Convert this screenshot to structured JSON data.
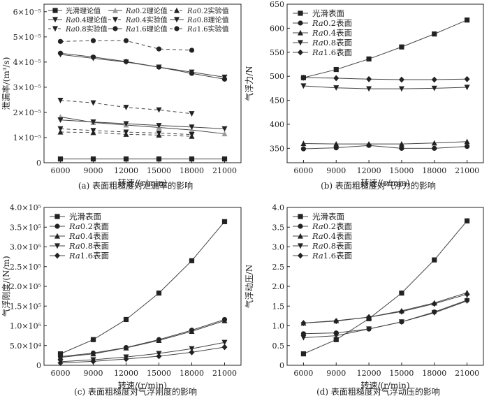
{
  "chart_data": [
    {
      "type": "line",
      "caption": "(a) 表面粗糙度对泄漏率的影响",
      "xlabel": "转速/(r/min)",
      "ylabel": "泄漏率/(m³/s)",
      "y_multiplier_label": "×10⁻⁵",
      "x": [
        6000,
        9000,
        12000,
        15000,
        18000,
        21000
      ],
      "xlim": [
        4500,
        22500
      ],
      "ylim": [
        0,
        6.3
      ],
      "yticks": [
        0,
        1,
        2,
        3,
        4,
        5,
        6
      ],
      "yticklabels": [
        "0",
        "1×10⁻⁵",
        "2×10⁻⁵",
        "3×10⁻⁵",
        "4×10⁻⁵",
        "5×10⁻⁵",
        "6×10⁻⁵"
      ],
      "legend_position": "top",
      "series": [
        {
          "name": "光滑理论值",
          "marker": "square",
          "dashed": false,
          "values": [
            0.15,
            0.15,
            0.15,
            0.15,
            0.15,
            0.15
          ]
        },
        {
          "name": "Ra0.2理论值",
          "marker": "triangle-up-gray",
          "dashed": false,
          "values": [
            1.82,
            1.6,
            1.5,
            1.4,
            1.3,
            1.15
          ]
        },
        {
          "name": "Ra0.2实验值",
          "marker": "triangle-up",
          "dashed": true,
          "values": [
            1.22,
            1.2,
            1.13,
            1.1,
            1.05,
            null
          ]
        },
        {
          "name": "Ra0.4理论值",
          "marker": "triangle-down",
          "dashed": false,
          "values": [
            1.7,
            1.62,
            1.55,
            1.48,
            1.42,
            1.35
          ]
        },
        {
          "name": "Ra0.4实验值",
          "marker": "triangle-down",
          "dashed": true,
          "values": [
            1.35,
            1.28,
            1.22,
            1.18,
            1.12,
            null
          ]
        },
        {
          "name": "Ra0.8理论值",
          "marker": "triangle-down",
          "dashed": false,
          "values": [
            4.3,
            4.15,
            4.0,
            3.8,
            3.6,
            3.4
          ]
        },
        {
          "name": "Ra0.8实验值",
          "marker": "triangle-down",
          "dashed": true,
          "values": [
            2.48,
            2.38,
            2.2,
            2.1,
            1.95,
            null
          ]
        },
        {
          "name": "Ra1.6理论值",
          "marker": "circle",
          "dashed": false,
          "values": [
            4.35,
            4.2,
            4.02,
            3.8,
            3.55,
            3.32
          ]
        },
        {
          "name": "Ra1.6实验值",
          "marker": "circle",
          "dashed": true,
          "values": [
            4.82,
            4.85,
            4.85,
            4.52,
            4.47,
            null
          ]
        }
      ]
    },
    {
      "type": "line",
      "caption": "(b) 表面粗糙度对气浮力的影响",
      "xlabel": "转速/(r/min)",
      "ylabel": "气浮力/N",
      "x": [
        6000,
        9000,
        12000,
        15000,
        18000,
        21000
      ],
      "xlim": [
        4500,
        22500
      ],
      "ylim": [
        320,
        650
      ],
      "yticks": [
        350,
        400,
        450,
        500,
        550,
        600,
        650
      ],
      "yticklabels": [
        "350",
        "400",
        "450",
        "500",
        "550",
        "600",
        "650"
      ],
      "legend_position": "top-left",
      "series": [
        {
          "name": "光滑表面",
          "marker": "square",
          "values": [
            497,
            514,
            536,
            561,
            588,
            617
          ]
        },
        {
          "name": "Ra0.2表面",
          "marker": "circle",
          "values": [
            349,
            351,
            356,
            350,
            350,
            354
          ]
        },
        {
          "name": "Ra0.4表面",
          "marker": "triangle-up",
          "values": [
            360,
            359,
            359,
            359,
            361,
            364
          ]
        },
        {
          "name": "Ra0.8表面",
          "marker": "triangle-down",
          "values": [
            480,
            476,
            474,
            474,
            475,
            477
          ]
        },
        {
          "name": "Ra1.6表面",
          "marker": "diamond",
          "values": [
            497,
            496,
            494,
            493,
            493,
            494
          ]
        }
      ]
    },
    {
      "type": "line",
      "caption": "(c) 表面粗糙度对气浮刚度的影响",
      "xlabel": "转速/(r/min)",
      "ylabel": "气浮刚度/(N/m)",
      "x": [
        6000,
        9000,
        12000,
        15000,
        18000,
        21000
      ],
      "xlim": [
        4500,
        22500
      ],
      "ylim": [
        0,
        4.0
      ],
      "yticks": [
        0,
        0.5,
        1.0,
        1.5,
        2.0,
        2.5,
        3.0,
        3.5,
        4.0
      ],
      "yticklabels": [
        "0",
        "5.0×10⁴",
        "1.0×10⁵",
        "1.5×10⁵",
        "2.0×10⁵",
        "2.5×10⁵",
        "3.0×10⁵",
        "3.5×10⁵",
        "4.0×10⁵"
      ],
      "legend_position": "top-left",
      "series": [
        {
          "name": "光滑表面",
          "marker": "square",
          "values": [
            0.29,
            0.65,
            1.16,
            1.83,
            2.65,
            3.64
          ]
        },
        {
          "name": "Ra0.2表面",
          "marker": "circle",
          "values": [
            0.22,
            0.31,
            0.45,
            0.65,
            0.89,
            1.16
          ]
        },
        {
          "name": "Ra0.4表面",
          "marker": "triangle-up",
          "values": [
            0.2,
            0.29,
            0.44,
            0.63,
            0.86,
            1.13
          ]
        },
        {
          "name": "Ra0.8表面",
          "marker": "triangle-down",
          "values": [
            0.09,
            0.14,
            0.21,
            0.3,
            0.42,
            0.58
          ]
        },
        {
          "name": "Ra1.6表面",
          "marker": "diamond",
          "values": [
            0.06,
            0.1,
            0.16,
            0.23,
            0.33,
            0.46
          ]
        }
      ]
    },
    {
      "type": "line",
      "caption": "(d) 表面粗糙度对气浮动压的影响",
      "xlabel": "转速/(r/min)",
      "ylabel": "气浮动压/N",
      "x": [
        6000,
        9000,
        12000,
        15000,
        18000,
        21000
      ],
      "xlim": [
        4500,
        22500
      ],
      "ylim": [
        0,
        4.0
      ],
      "yticks": [
        0,
        0.5,
        1.0,
        1.5,
        2.0,
        2.5,
        3.0,
        3.5,
        4.0
      ],
      "yticklabels": [
        "0",
        "0.5",
        "1.0",
        "1.5",
        "2.0",
        "2.5",
        "3.0",
        "3.5",
        "4.0"
      ],
      "legend_position": "top-left",
      "series": [
        {
          "name": "光滑表面",
          "marker": "square",
          "values": [
            0.29,
            0.65,
            1.18,
            1.83,
            2.67,
            3.66
          ]
        },
        {
          "name": "Ra0.2表面",
          "marker": "circle",
          "values": [
            0.8,
            0.82,
            0.92,
            1.1,
            1.35,
            1.65
          ]
        },
        {
          "name": "Ra0.4表面",
          "marker": "triangle-up",
          "values": [
            1.07,
            1.13,
            1.22,
            1.38,
            1.58,
            1.84
          ]
        },
        {
          "name": "Ra0.8表面",
          "marker": "triangle-down",
          "values": [
            0.7,
            0.75,
            0.92,
            1.1,
            1.33,
            1.63
          ]
        },
        {
          "name": "Ra1.6表面",
          "marker": "diamond",
          "values": [
            1.07,
            1.12,
            1.22,
            1.36,
            1.56,
            1.8
          ]
        }
      ]
    }
  ]
}
